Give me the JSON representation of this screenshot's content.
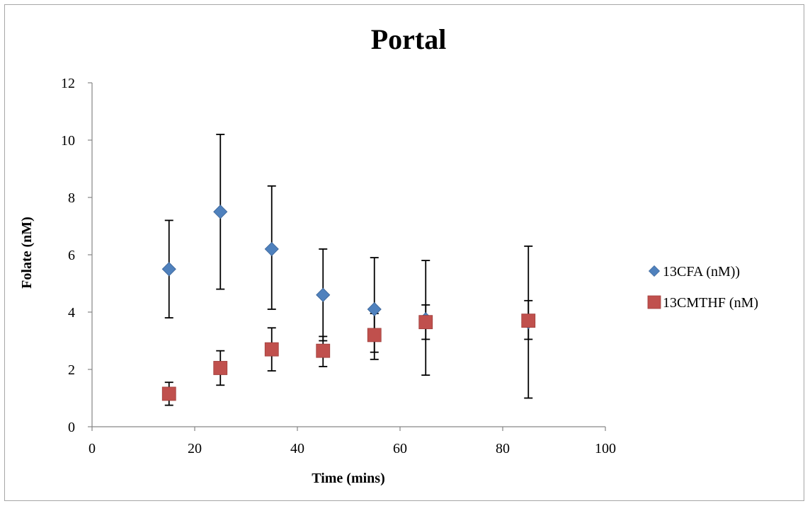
{
  "chart_data": {
    "type": "scatter",
    "title": "Portal",
    "xlabel": "Time (mins)",
    "ylabel": "Folate (nM)",
    "xlim": [
      0,
      100
    ],
    "ylim": [
      0,
      12
    ],
    "x_ticks": [
      0,
      20,
      40,
      60,
      80,
      100
    ],
    "y_ticks": [
      0,
      2,
      4,
      6,
      8,
      10,
      12
    ],
    "grid": false,
    "legend_position": "right",
    "series": [
      {
        "name": "13CFA (nM))",
        "marker": "diamond",
        "color": "#4f81bd",
        "points": [
          {
            "x": 15,
            "y": 5.5,
            "err_low": 3.8,
            "err_high": 7.2
          },
          {
            "x": 25,
            "y": 7.5,
            "err_low": 4.8,
            "err_high": 10.2
          },
          {
            "x": 35,
            "y": 6.2,
            "err_low": 4.1,
            "err_high": 8.4
          },
          {
            "x": 45,
            "y": 4.6,
            "err_low": 3.0,
            "err_high": 6.2
          },
          {
            "x": 55,
            "y": 4.1,
            "err_low": 2.6,
            "err_high": 5.9
          },
          {
            "x": 65,
            "y": 3.75,
            "err_low": 1.8,
            "err_high": 5.8
          },
          {
            "x": 85,
            "y": 3.65,
            "err_low": 1.0,
            "err_high": 6.3
          }
        ]
      },
      {
        "name": "13CMTHF (nM)",
        "marker": "square",
        "color": "#c0504d",
        "points": [
          {
            "x": 15,
            "y": 1.15,
            "err_low": 0.75,
            "err_high": 1.55
          },
          {
            "x": 25,
            "y": 2.05,
            "err_low": 1.45,
            "err_high": 2.65
          },
          {
            "x": 35,
            "y": 2.7,
            "err_low": 1.95,
            "err_high": 3.45
          },
          {
            "x": 45,
            "y": 2.65,
            "err_low": 2.1,
            "err_high": 3.15
          },
          {
            "x": 55,
            "y": 3.2,
            "err_low": 2.35,
            "err_high": 3.95
          },
          {
            "x": 65,
            "y": 3.65,
            "err_low": 3.05,
            "err_high": 4.25
          },
          {
            "x": 85,
            "y": 3.7,
            "err_low": 3.05,
            "err_high": 4.4
          }
        ]
      }
    ]
  }
}
